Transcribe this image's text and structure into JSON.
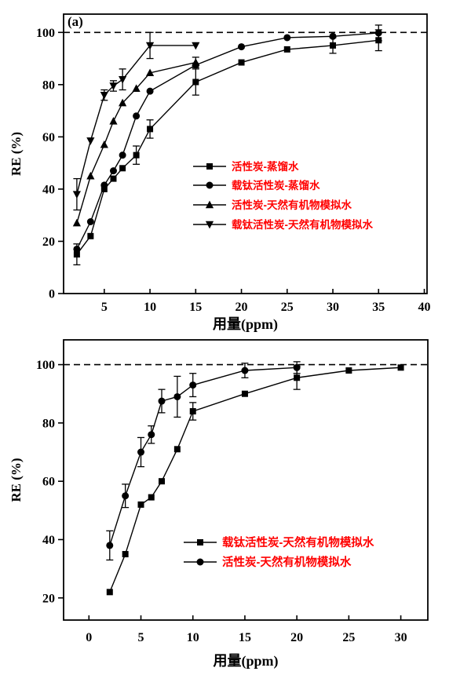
{
  "figure": {
    "background": "#ffffff",
    "line_color": "#000000",
    "legend_text_color": "#ff0000"
  },
  "chart_data": [
    {
      "type": "line",
      "panel_label": "(a)",
      "xlabel": "用量(ppm)",
      "ylabel": "RE (%)",
      "xlim": [
        0.55,
        40.3
      ],
      "ylim": [
        0,
        107
      ],
      "xticks": [
        5,
        10,
        15,
        20,
        25,
        30,
        35,
        40
      ],
      "yticks": [
        0,
        20,
        40,
        60,
        80,
        100
      ],
      "dashed_reference_y": 100,
      "grid": false,
      "legend_position": "center-right-inside",
      "legend_color": "#ff0000",
      "series": [
        {
          "name": "活性炭-蒸馏水",
          "marker": "square",
          "color": "#000000",
          "x": [
            2,
            3.5,
            5,
            6,
            7,
            8.5,
            10,
            15,
            20,
            25,
            30,
            35
          ],
          "y": [
            15,
            22,
            40,
            44,
            48,
            53,
            63,
            81,
            88.5,
            93.5,
            95,
            97
          ],
          "yerr": [
            4,
            0,
            0,
            0,
            0,
            3.5,
            3.5,
            5,
            0,
            0,
            3,
            4
          ]
        },
        {
          "name": "载钛活性炭-蒸馏水",
          "marker": "circle",
          "color": "#000000",
          "x": [
            2,
            3.5,
            5,
            6,
            7,
            8.5,
            10,
            15,
            20,
            25,
            30,
            35
          ],
          "y": [
            17,
            27.5,
            41.5,
            47,
            53,
            68,
            77.5,
            87.5,
            94.5,
            98,
            98.5,
            99.8
          ],
          "yerr": [
            0,
            0,
            0,
            0,
            0,
            0,
            0,
            0,
            0,
            0,
            0,
            3
          ]
        },
        {
          "name": "活性炭-天然有机物模拟水",
          "marker": "triangle-up",
          "color": "#000000",
          "x": [
            2,
            3.5,
            5,
            6,
            7,
            8.5,
            10,
            15
          ],
          "y": [
            27,
            45,
            57,
            66,
            73,
            78.5,
            84.5,
            88.5
          ],
          "yerr": [
            0,
            0,
            0,
            0,
            0,
            0,
            0,
            2
          ]
        },
        {
          "name": "载钛活性炭-天然有机物模拟水",
          "marker": "triangle-down",
          "color": "#000000",
          "x": [
            2,
            3.5,
            5,
            6,
            7,
            10,
            15
          ],
          "y": [
            38,
            58.5,
            76,
            79.5,
            82,
            95,
            95
          ],
          "yerr": [
            6,
            0,
            2,
            2,
            4,
            5,
            0
          ]
        }
      ]
    },
    {
      "type": "line",
      "panel_label": "",
      "xlabel": "用量(ppm)",
      "ylabel": "RE (%)",
      "xlim": [
        -2.44,
        32.6
      ],
      "ylim": [
        12.4,
        108.5
      ],
      "xticks": [
        0,
        5,
        10,
        15,
        20,
        25,
        30
      ],
      "yticks": [
        20,
        40,
        60,
        80,
        100
      ],
      "dashed_reference_y": 100,
      "grid": false,
      "legend_position": "center-right-inside",
      "legend_color": "#ff0000",
      "series": [
        {
          "name": "载钛活性炭-天然有机物模拟水",
          "marker": "square",
          "color": "#000000",
          "x": [
            2,
            3.5,
            5,
            6,
            7,
            8.5,
            10,
            15,
            20,
            25,
            30
          ],
          "y": [
            22,
            35,
            52,
            54.5,
            60,
            71,
            84,
            90,
            95.5,
            98,
            99
          ],
          "yerr": [
            0,
            0,
            0,
            0,
            0,
            0,
            3,
            0,
            4,
            0,
            0
          ]
        },
        {
          "name": "活性炭-天然有机物模拟水",
          "marker": "circle",
          "color": "#000000",
          "x": [
            2,
            3.5,
            5,
            6,
            7,
            8.5,
            10,
            15,
            20
          ],
          "y": [
            38,
            55,
            70,
            76,
            87.5,
            89,
            93,
            98,
            99
          ],
          "yerr": [
            5,
            4,
            5,
            3,
            4,
            7,
            4,
            2.5,
            2
          ]
        }
      ]
    }
  ]
}
